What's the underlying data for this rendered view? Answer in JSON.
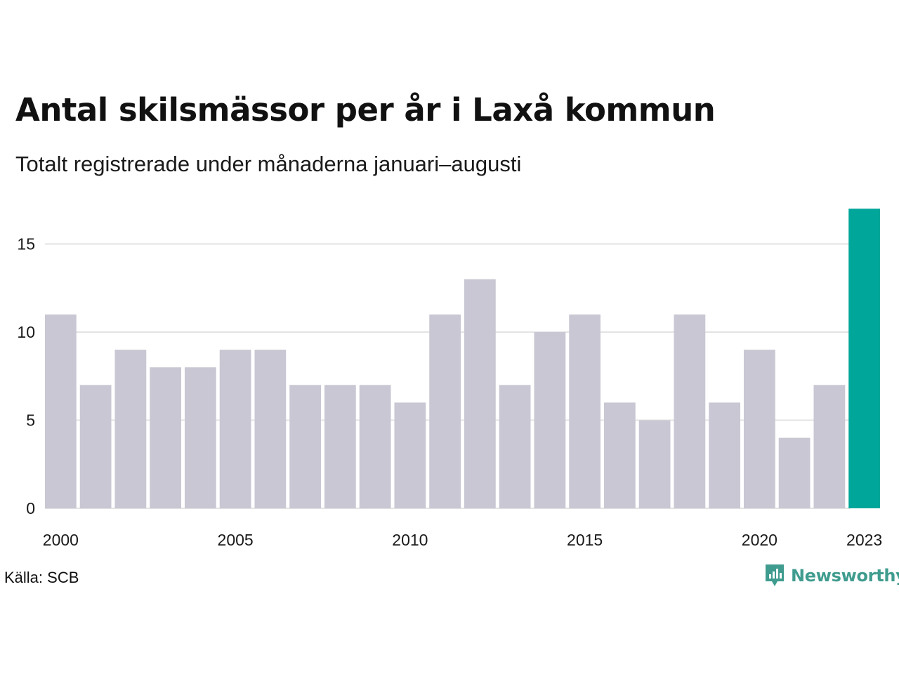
{
  "title": "Antal skilsmässor per år i Laxå kommun",
  "subtitle": "Totalt registrerade under månaderna januari–augusti",
  "source": "Källa: SCB",
  "brand": {
    "name": "Newsworthy",
    "icon": "newsworthy-logo-icon",
    "color": "#3f9c8e"
  },
  "chart_data": {
    "type": "bar",
    "categories": [
      "2000",
      "2001",
      "2002",
      "2003",
      "2004",
      "2005",
      "2006",
      "2007",
      "2008",
      "2009",
      "2010",
      "2011",
      "2012",
      "2013",
      "2014",
      "2015",
      "2016",
      "2017",
      "2018",
      "2019",
      "2020",
      "2021",
      "2022",
      "2023"
    ],
    "values": [
      11,
      7,
      9,
      8,
      8,
      9,
      9,
      7,
      7,
      7,
      6,
      11,
      13,
      7,
      10,
      11,
      6,
      5,
      11,
      6,
      9,
      4,
      7,
      17
    ],
    "x_tick_labels": [
      "2000",
      "2005",
      "2010",
      "2015",
      "2020",
      "2023"
    ],
    "y_ticks": [
      0,
      5,
      10,
      15
    ],
    "ylim": [
      0,
      17
    ],
    "grid": true,
    "colors": {
      "default": "#c8c7d3",
      "highlight": "#00a699",
      "grid": "#e3e3e3"
    },
    "highlight_category": "2023"
  }
}
